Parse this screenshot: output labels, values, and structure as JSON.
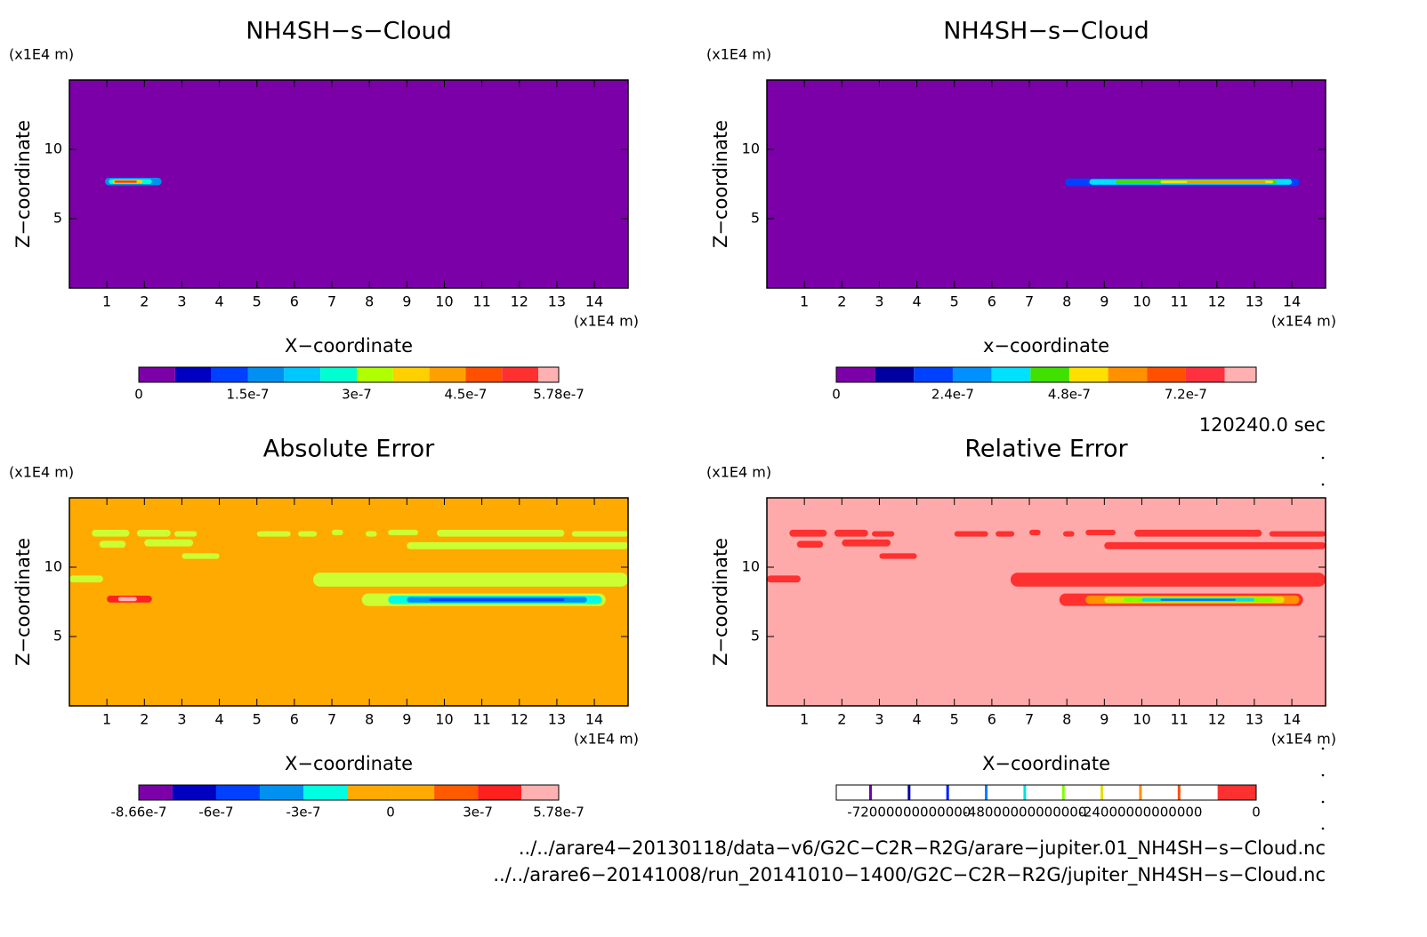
{
  "chart_data": [
    {
      "type": "contour",
      "title": "NH4SH−s−Cloud",
      "xlabel": "X−coordinate",
      "ylabel": "Z−coordinate",
      "xunit": "(x1E4 m)",
      "yunit": "(x1E4 m)",
      "xlim": [
        0,
        14.9
      ],
      "ylim": [
        0,
        15
      ],
      "xticks": [
        1,
        2,
        3,
        4,
        5,
        6,
        7,
        8,
        9,
        10,
        11,
        12,
        13,
        14
      ],
      "yticks": [
        5,
        10
      ],
      "fill": "#7b00a8",
      "features": [
        {
          "x": [
            0.95,
            2.46
          ],
          "z": [
            7.4,
            7.95
          ],
          "color": "#0090f0"
        },
        {
          "x": [
            1.05,
            2.2
          ],
          "z": [
            7.5,
            7.85
          ],
          "color": "#00ffd0"
        },
        {
          "x": [
            1.15,
            1.95
          ],
          "z": [
            7.55,
            7.8
          ],
          "color": "#ffd000"
        },
        {
          "x": [
            1.2,
            1.8
          ],
          "z": [
            7.6,
            7.75
          ],
          "color": "#ff3030"
        }
      ],
      "colorbar": {
        "levels": [
          0,
          5e-08,
          1e-07,
          1.5e-07,
          2e-07,
          2.5e-07,
          3e-07,
          3.5e-07,
          4e-07,
          4.5e-07,
          5e-07,
          5.5e-07,
          5.78e-07
        ],
        "colors": [
          "#7b00a8",
          "#0000c0",
          "#0040ff",
          "#0090f0",
          "#00c8ff",
          "#00ffd0",
          "#b0ff00",
          "#ffd000",
          "#ffa000",
          "#ff5000",
          "#ff3030",
          "#ffb0b0"
        ],
        "ticks": [
          0,
          1.5e-07,
          3e-07,
          4.5e-07,
          5.78e-07
        ]
      }
    },
    {
      "type": "contour",
      "title": "NH4SH−s−Cloud",
      "xlabel": "x−coordinate",
      "ylabel": "Z−coordinate",
      "xunit": "(x1E4 m)",
      "yunit": "(x1E4 m)",
      "xlim": [
        0,
        14.9
      ],
      "ylim": [
        0,
        15
      ],
      "xticks": [
        1,
        2,
        3,
        4,
        5,
        6,
        7,
        8,
        9,
        10,
        11,
        12,
        13,
        14
      ],
      "yticks": [
        5,
        10
      ],
      "fill": "#7b00a8",
      "features": [
        {
          "x": [
            7.95,
            14.2
          ],
          "z": [
            7.35,
            7.9
          ],
          "color": "#0040ff"
        },
        {
          "x": [
            8.6,
            14.0
          ],
          "z": [
            7.45,
            7.85
          ],
          "color": "#00e0ff"
        },
        {
          "x": [
            9.3,
            13.6
          ],
          "z": [
            7.5,
            7.8
          ],
          "color": "#40e000"
        },
        {
          "x": [
            10.5,
            13.5
          ],
          "z": [
            7.55,
            7.75
          ],
          "color": "#ffe000"
        },
        {
          "x": [
            11.2,
            13.3
          ],
          "z": [
            7.58,
            7.72
          ],
          "color": "#ff9000"
        }
      ],
      "colorbar": {
        "levels": [
          0,
          8e-08,
          1.6e-07,
          2.4e-07,
          3.2e-07,
          4e-07,
          4.8e-07,
          5.6e-07,
          6.4e-07,
          7.2e-07,
          8e-07,
          8.65e-07
        ],
        "colors": [
          "#7b00a8",
          "#0000a0",
          "#0040ff",
          "#0090ff",
          "#00e0ff",
          "#40e000",
          "#ffe000",
          "#ff9000",
          "#ff5000",
          "#ff3040",
          "#ffb0b0"
        ],
        "ticks": [
          0,
          2.4e-07,
          4.8e-07,
          7.2e-07
        ]
      }
    },
    {
      "type": "contour",
      "title": "Absolute Error",
      "xlabel": "X−coordinate",
      "ylabel": "Z−coordinate",
      "xunit": "(x1E4 m)",
      "yunit": "(x1E4 m)",
      "xlim": [
        0,
        14.9
      ],
      "ylim": [
        0,
        15
      ],
      "xticks": [
        1,
        2,
        3,
        4,
        5,
        6,
        7,
        8,
        9,
        10,
        11,
        12,
        13,
        14
      ],
      "yticks": [
        5,
        10
      ],
      "fill": "#ffaa00",
      "features": [
        {
          "x": [
            0.6,
            1.6
          ],
          "z": [
            12.2,
            12.7
          ],
          "color": "#ccff33"
        },
        {
          "x": [
            1.8,
            2.7
          ],
          "z": [
            12.2,
            12.7
          ],
          "color": "#ccff33"
        },
        {
          "x": [
            2.8,
            3.4
          ],
          "z": [
            12.2,
            12.6
          ],
          "color": "#ccff33"
        },
        {
          "x": [
            5.0,
            5.9
          ],
          "z": [
            12.2,
            12.6
          ],
          "color": "#ccff33"
        },
        {
          "x": [
            6.1,
            6.6
          ],
          "z": [
            12.2,
            12.6
          ],
          "color": "#ccff33"
        },
        {
          "x": [
            7.0,
            7.3
          ],
          "z": [
            12.3,
            12.7
          ],
          "color": "#ccff33"
        },
        {
          "x": [
            7.9,
            8.2
          ],
          "z": [
            12.2,
            12.6
          ],
          "color": "#ccff33"
        },
        {
          "x": [
            8.5,
            9.3
          ],
          "z": [
            12.3,
            12.7
          ],
          "color": "#ccff33"
        },
        {
          "x": [
            9.8,
            13.2
          ],
          "z": [
            12.2,
            12.7
          ],
          "color": "#ccff33"
        },
        {
          "x": [
            13.4,
            14.9
          ],
          "z": [
            12.2,
            12.6
          ],
          "color": "#ccff33"
        },
        {
          "x": [
            0.8,
            1.5
          ],
          "z": [
            11.4,
            11.9
          ],
          "color": "#ccff33"
        },
        {
          "x": [
            2.0,
            3.3
          ],
          "z": [
            11.5,
            12.0
          ],
          "color": "#ccff33"
        },
        {
          "x": [
            9.0,
            14.9
          ],
          "z": [
            11.3,
            11.8
          ],
          "color": "#ccff33"
        },
        {
          "x": [
            3.0,
            4.0
          ],
          "z": [
            10.6,
            11.0
          ],
          "color": "#ccff33"
        },
        {
          "x": [
            0,
            0.9
          ],
          "z": [
            8.9,
            9.4
          ],
          "color": "#ccff33"
        },
        {
          "x": [
            6.5,
            14.9
          ],
          "z": [
            8.6,
            9.6
          ],
          "color": "#ccff33"
        },
        {
          "x": [
            7.8,
            14.3
          ],
          "z": [
            7.2,
            8.1
          ],
          "color": "#ccff33"
        },
        {
          "x": [
            8.5,
            14.2
          ],
          "z": [
            7.35,
            7.95
          ],
          "color": "#00ffe0"
        },
        {
          "x": [
            9.0,
            13.8
          ],
          "z": [
            7.45,
            7.85
          ],
          "color": "#0090f0"
        },
        {
          "x": [
            9.6,
            13.2
          ],
          "z": [
            7.55,
            7.75
          ],
          "color": "#0040ff"
        },
        {
          "x": [
            1.0,
            2.2
          ],
          "z": [
            7.45,
            7.95
          ],
          "color": "#ff2020"
        },
        {
          "x": [
            1.3,
            1.8
          ],
          "z": [
            7.55,
            7.85
          ],
          "color": "#ffb0b0"
        }
      ],
      "colorbar": {
        "levels": [
          -8.66e-07,
          -7.5e-07,
          -6e-07,
          -4.5e-07,
          -3e-07,
          -1.5e-07,
          0,
          1.5e-07,
          3e-07,
          4.5e-07,
          5.78e-07
        ],
        "colors": [
          "#7b00a8",
          "#0000c0",
          "#0040ff",
          "#0090f0",
          "#00ffe0",
          "#ffaa00",
          "#ffaa00",
          "#ff5a00",
          "#ff2020",
          "#ffb0b0"
        ],
        "ticks": [
          -8.66e-07,
          -6e-07,
          -3e-07,
          0,
          3e-07,
          5.78e-07
        ]
      }
    },
    {
      "type": "contour",
      "title": "Relative Error",
      "xlabel": "X−coordinate",
      "ylabel": "Z−coordinate",
      "xunit": "(x1E4 m)",
      "yunit": "(x1E4 m)",
      "xlim": [
        0,
        14.9
      ],
      "ylim": [
        0,
        15
      ],
      "xticks": [
        1,
        2,
        3,
        4,
        5,
        6,
        7,
        8,
        9,
        10,
        11,
        12,
        13,
        14
      ],
      "yticks": [
        5,
        10
      ],
      "fill": "#ffaaaa",
      "features": [
        {
          "x": [
            0.6,
            1.6
          ],
          "z": [
            12.2,
            12.7
          ],
          "color": "#ff3030"
        },
        {
          "x": [
            1.8,
            2.7
          ],
          "z": [
            12.2,
            12.7
          ],
          "color": "#ff3030"
        },
        {
          "x": [
            2.8,
            3.4
          ],
          "z": [
            12.2,
            12.6
          ],
          "color": "#ff3030"
        },
        {
          "x": [
            5.0,
            5.9
          ],
          "z": [
            12.2,
            12.6
          ],
          "color": "#ff3030"
        },
        {
          "x": [
            6.1,
            6.6
          ],
          "z": [
            12.2,
            12.6
          ],
          "color": "#ff3030"
        },
        {
          "x": [
            7.0,
            7.3
          ],
          "z": [
            12.3,
            12.7
          ],
          "color": "#ff3030"
        },
        {
          "x": [
            7.9,
            8.2
          ],
          "z": [
            12.2,
            12.6
          ],
          "color": "#ff3030"
        },
        {
          "x": [
            8.5,
            9.3
          ],
          "z": [
            12.3,
            12.7
          ],
          "color": "#ff3030"
        },
        {
          "x": [
            9.8,
            13.2
          ],
          "z": [
            12.2,
            12.7
          ],
          "color": "#ff3030"
        },
        {
          "x": [
            13.4,
            14.9
          ],
          "z": [
            12.2,
            12.6
          ],
          "color": "#ff3030"
        },
        {
          "x": [
            0.8,
            1.5
          ],
          "z": [
            11.4,
            11.9
          ],
          "color": "#ff3030"
        },
        {
          "x": [
            2.0,
            3.3
          ],
          "z": [
            11.5,
            12.0
          ],
          "color": "#ff3030"
        },
        {
          "x": [
            9.0,
            14.9
          ],
          "z": [
            11.3,
            11.8
          ],
          "color": "#ff3030"
        },
        {
          "x": [
            3.0,
            4.0
          ],
          "z": [
            10.6,
            11.0
          ],
          "color": "#ff3030"
        },
        {
          "x": [
            0,
            0.9
          ],
          "z": [
            8.9,
            9.4
          ],
          "color": "#ff3030"
        },
        {
          "x": [
            6.5,
            14.9
          ],
          "z": [
            8.6,
            9.6
          ],
          "color": "#ff3030"
        },
        {
          "x": [
            7.8,
            14.3
          ],
          "z": [
            7.2,
            8.1
          ],
          "color": "#ff3030"
        },
        {
          "x": [
            8.5,
            14.2
          ],
          "z": [
            7.35,
            7.95
          ],
          "color": "#ff9000"
        },
        {
          "x": [
            9.0,
            13.8
          ],
          "z": [
            7.42,
            7.88
          ],
          "color": "#e0e000"
        },
        {
          "x": [
            9.5,
            13.5
          ],
          "z": [
            7.48,
            7.82
          ],
          "color": "#80ff00"
        },
        {
          "x": [
            10.0,
            13.0
          ],
          "z": [
            7.53,
            7.77
          ],
          "color": "#00e0e0"
        },
        {
          "x": [
            10.5,
            12.5
          ],
          "z": [
            7.58,
            7.72
          ],
          "color": "#0060ff"
        }
      ],
      "colorbar": {
        "levels": [
          -87100000000000.0,
          -8000000000000.0,
          0
        ],
        "colors": [
          "#ffffff",
          "#ff3030"
        ],
        "lines": [
          -80000000000000.0,
          -72000000000000.0,
          -64000000000000.0,
          -56000000000000.0,
          -48000000000000.0,
          -40000000000000.0,
          -32000000000000.0,
          -24000000000000.0,
          -16000000000000.0
        ],
        "line_colors": [
          "#7000b0",
          "#0000a0",
          "#0020ff",
          "#0080ff",
          "#00e0e0",
          "#80ff00",
          "#e0e000",
          "#ff9000",
          "#ff5000"
        ],
        "ticks": [
          -72000000000000.0,
          -48000000000000.0,
          -24000000000000.0,
          0
        ]
      }
    }
  ],
  "time_label": "120240.0 sec",
  "files": [
    "../../arare4−20130118/data−v6/G2C−C2R−R2G/arare−jupiter.01_NH4SH−s−Cloud.nc",
    "../../arare6−20141008/run_20141010−1400/G2C−C2R−R2G/jupiter_NH4SH−s−Cloud.nc"
  ]
}
